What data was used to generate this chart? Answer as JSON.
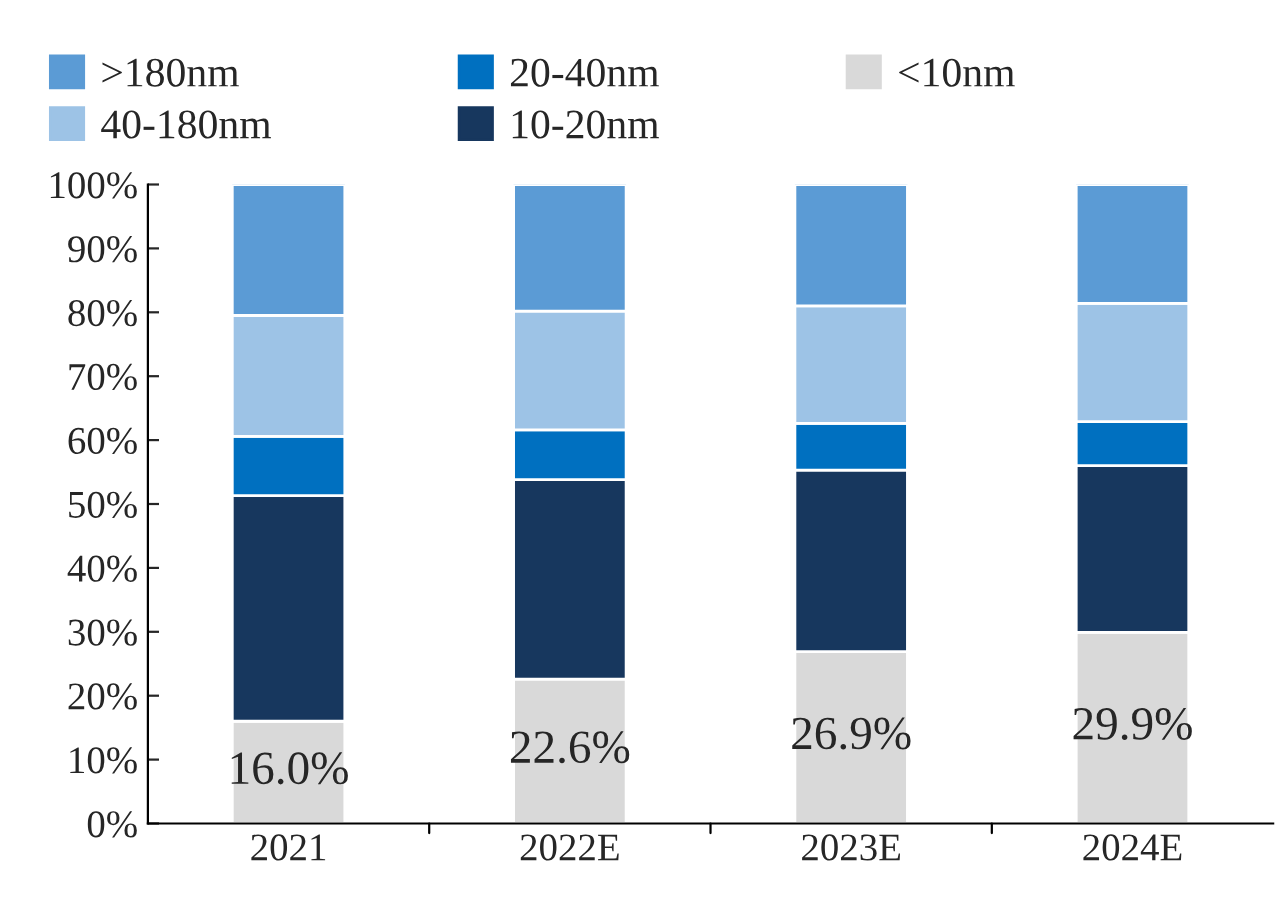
{
  "chart_data": {
    "type": "bar",
    "stacked": true,
    "categories": [
      "2021",
      "2022E",
      "2023E",
      "2024E"
    ],
    "series": [
      {
        "name": "<10nm",
        "color": "#d9d9d9",
        "values": [
          16.0,
          22.6,
          26.9,
          29.9
        ],
        "value_labels": [
          "16.0%",
          "22.6%",
          "26.9%",
          "29.9%"
        ]
      },
      {
        "name": "10-20nm",
        "color": "#17375e",
        "values": [
          35.3,
          31.2,
          28.4,
          26.1
        ]
      },
      {
        "name": "20-40nm",
        "color": "#0070c0",
        "values": [
          9.3,
          7.8,
          7.3,
          6.9
        ]
      },
      {
        "name": "40-180nm",
        "color": "#9dc3e6",
        "values": [
          18.9,
          18.6,
          18.4,
          18.5
        ]
      },
      {
        "name": ">180nm",
        "color": "#5b9bd5",
        "values": [
          20.5,
          19.8,
          19.0,
          18.6
        ]
      }
    ],
    "ylim": [
      0,
      100
    ],
    "yticks": [
      {
        "value": 0,
        "label": "0%"
      },
      {
        "value": 10,
        "label": "10%"
      },
      {
        "value": 20,
        "label": "20%"
      },
      {
        "value": 30,
        "label": "30%"
      },
      {
        "value": 40,
        "label": "40%"
      },
      {
        "value": 50,
        "label": "50%"
      },
      {
        "value": 60,
        "label": "60%"
      },
      {
        "value": 70,
        "label": "70%"
      },
      {
        "value": 80,
        "label": "80%"
      },
      {
        "value": 90,
        "label": "90%"
      },
      {
        "value": 100,
        "label": "100%"
      }
    ],
    "grid": false,
    "legend": "top"
  }
}
